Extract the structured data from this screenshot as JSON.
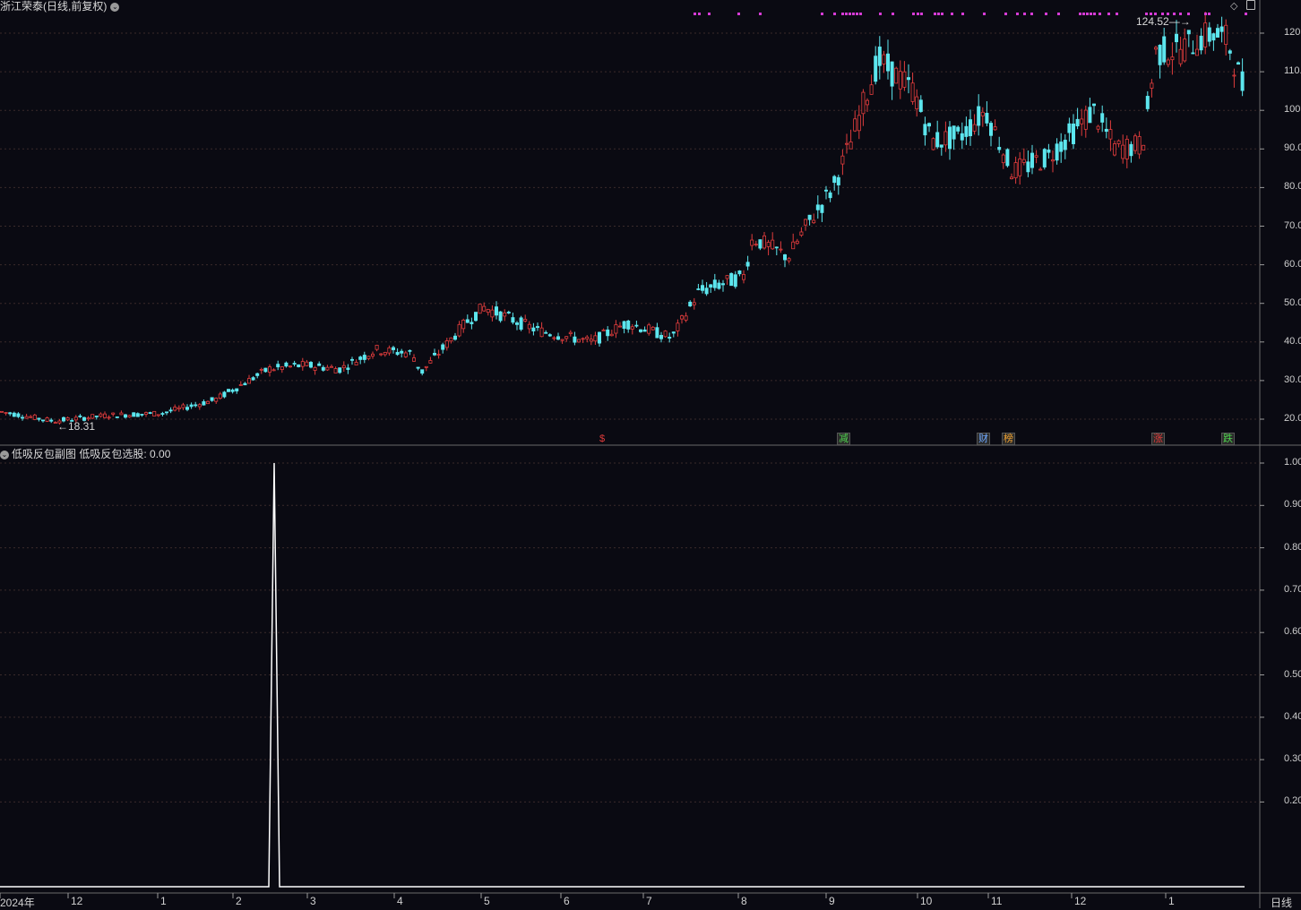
{
  "header": {
    "title": "浙江荣泰(日线,前复权)",
    "sub_title": "低吸反包副图",
    "sub_value_label": "低吸反包选股: 0.00"
  },
  "corner_icons": [
    "diamond-icon",
    "square-icon"
  ],
  "price_axis": {
    "labels": [
      "120.00",
      "110.00",
      "100.00",
      "90.00",
      "80.00",
      "70.00",
      "60.00",
      "50.00",
      "40.00",
      "30.00",
      "20.00"
    ],
    "values": [
      120,
      110,
      100,
      90,
      80,
      70,
      60,
      50,
      40,
      30,
      20
    ],
    "range": [
      16,
      125
    ]
  },
  "indicator_axis": {
    "labels": [
      "1.00",
      "0.90",
      "0.80",
      "0.70",
      "0.60",
      "0.50",
      "0.40",
      "0.30",
      "0.20"
    ],
    "values": [
      1,
      0.9,
      0.8,
      0.7,
      0.6,
      0.5,
      0.4,
      0.3,
      0.2
    ],
    "range": [
      0,
      1
    ]
  },
  "annotations": {
    "high_label": "124.52",
    "low_label": "18.31"
  },
  "markers": [
    {
      "label": "$",
      "color": "#e23b3b"
    },
    {
      "label": "减",
      "color": "#4fd24f"
    },
    {
      "label": "财",
      "color": "#6fa8ff"
    },
    {
      "label": "榜",
      "color": "#f0a030"
    },
    {
      "label": "涨",
      "color": "#e23b3b"
    },
    {
      "label": "跌",
      "color": "#4fd24f"
    }
  ],
  "time_axis": {
    "labels": [
      "2024年",
      "12",
      "1",
      "2",
      "3",
      "4",
      "5",
      "6",
      "7",
      "8",
      "9",
      "10",
      "11",
      "12",
      "1"
    ],
    "period": "日线"
  },
  "colors": {
    "up": "#e03c3c",
    "down": "#5ce6ee",
    "grid": "#3a2b2b",
    "dots": "#d63bd6",
    "indicator_line": "#ffffff"
  },
  "chart_data": {
    "type": "candlestick",
    "ylim": [
      16,
      125
    ],
    "high": 124.52,
    "low": 18.31,
    "trend": [
      [
        0,
        22
      ],
      [
        60,
        19.5
      ],
      [
        120,
        21
      ],
      [
        180,
        21.5
      ],
      [
        240,
        25
      ],
      [
        300,
        33
      ],
      [
        340,
        34
      ],
      [
        380,
        33
      ],
      [
        420,
        38
      ],
      [
        460,
        37
      ],
      [
        470,
        32
      ],
      [
        520,
        45
      ],
      [
        540,
        49
      ],
      [
        600,
        43
      ],
      [
        660,
        40
      ],
      [
        700,
        45
      ],
      [
        750,
        41
      ],
      [
        780,
        53
      ],
      [
        830,
        57
      ],
      [
        840,
        67
      ],
      [
        880,
        62
      ],
      [
        900,
        70
      ],
      [
        930,
        80
      ],
      [
        950,
        92
      ],
      [
        980,
        113
      ],
      [
        1020,
        105
      ],
      [
        1040,
        92
      ],
      [
        1070,
        93
      ],
      [
        1100,
        100
      ],
      [
        1130,
        84
      ],
      [
        1170,
        88
      ],
      [
        1200,
        95
      ],
      [
        1220,
        100
      ],
      [
        1245,
        90
      ],
      [
        1275,
        91
      ],
      [
        1290,
        115
      ],
      [
        1320,
        116
      ],
      [
        1335,
        118
      ],
      [
        1355,
        120
      ],
      [
        1370,
        118
      ],
      [
        1390,
        104
      ]
    ],
    "indicator": {
      "name": "低吸反包选股",
      "value": 0.0,
      "baseline": 0,
      "spike_value": 1.0
    }
  }
}
